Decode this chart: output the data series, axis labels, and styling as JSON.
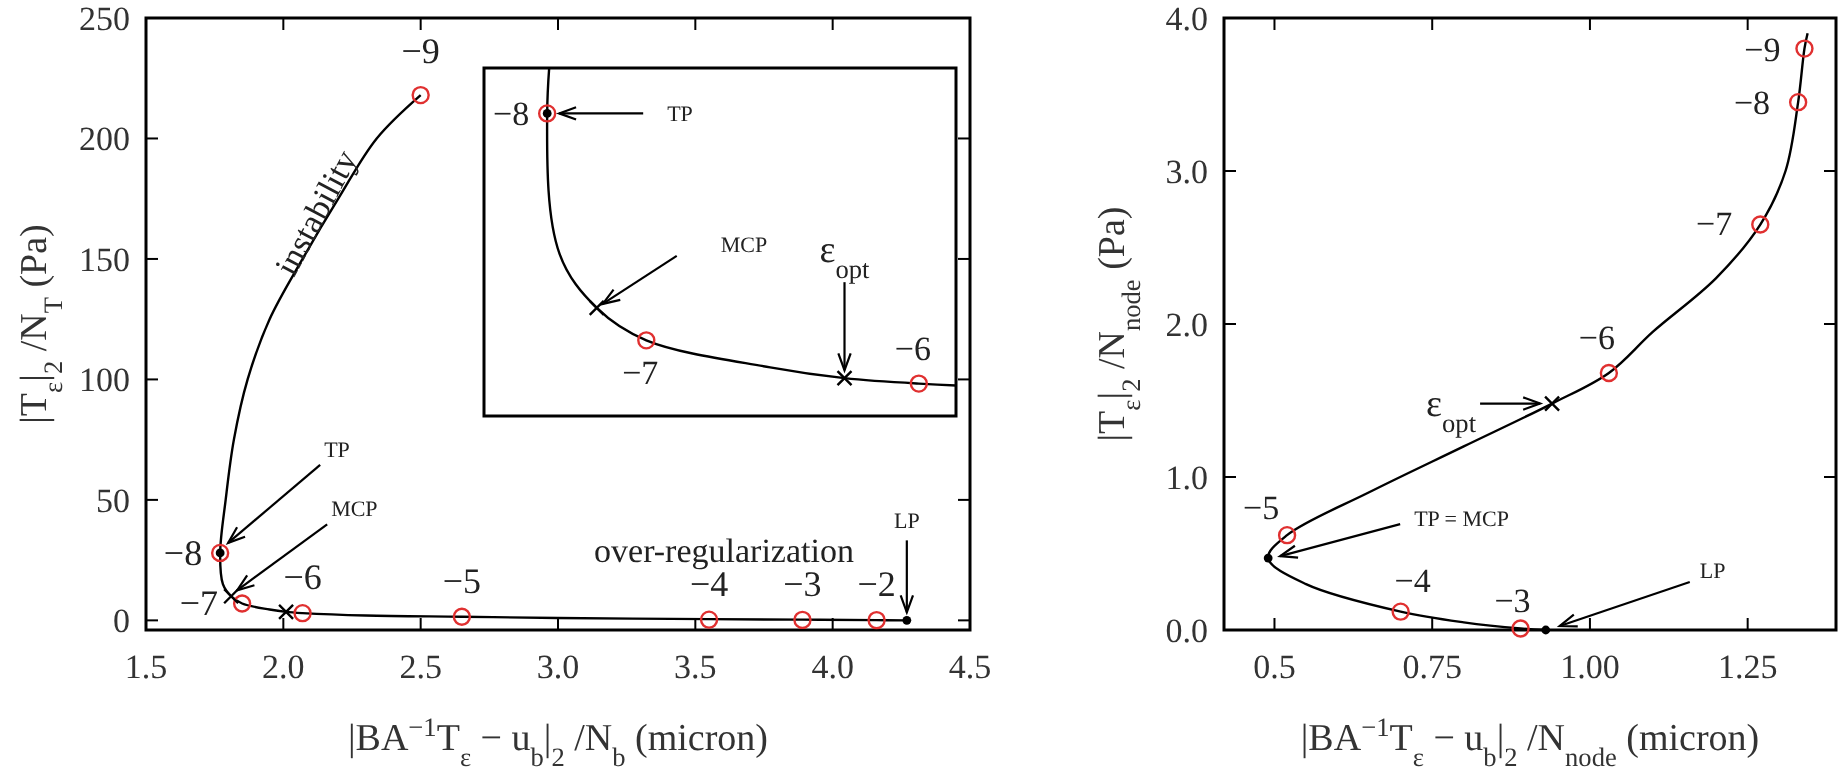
{
  "chart_data": [
    {
      "type": "line",
      "xlabel": "|BA$^{−1}$T$_{ε}$ − u$_{b}$|$_{2}$ /N$_{b}$ (micron)",
      "ylabel": "|T$_{ε}$|$_{2}$ /N$_{T}$ (Pa)",
      "xlim": [
        1.5,
        4.5
      ],
      "ylim": [
        -4,
        250
      ],
      "xticks": [
        1.5,
        {
          "value": 2,
          "label": "2.0"
        },
        2.5,
        {
          "value": 3,
          "label": "3.0"
        },
        3.5,
        {
          "value": 4,
          "label": "4.0"
        },
        4.5
      ],
      "yticks": [
        0,
        50,
        100,
        150,
        200,
        250
      ],
      "series": [
        {
          "type": "line",
          "color": "#000000",
          "marker": "none",
          "x": [
            2.5,
            2.34,
            2.2,
            2.07,
            1.95,
            1.87,
            1.82,
            1.79,
            1.77,
            1.78,
            1.81,
            1.85,
            1.95,
            2.01,
            2.07,
            2.3,
            2.65,
            3.0,
            3.55,
            3.89,
            4.16,
            4.27
          ],
          "values": [
            218,
            200,
            175,
            150,
            125,
            100,
            75,
            50,
            28,
            15,
            10,
            7,
            4.5,
            3.5,
            3,
            2,
            1.5,
            1,
            0.5,
            0.3,
            0.1,
            0
          ]
        },
        {
          "type": "scatter",
          "color": "#e03030",
          "marker": "circle",
          "x": [
            2.5,
            1.77,
            1.85,
            2.07,
            2.65,
            3.55,
            3.89,
            4.16
          ],
          "values": [
            218,
            28,
            7,
            3,
            1.5,
            0.3,
            0.2,
            0.1
          ]
        },
        {
          "type": "scatter",
          "color": "#000000",
          "marker": "circle",
          "x": [
            1.77,
            4.27
          ],
          "values": [
            28,
            0
          ]
        },
        {
          "type": "scatter",
          "color": "#000000",
          "marker": "cross",
          "x": [
            1.81,
            2.01
          ],
          "values": [
            10,
            3.5
          ]
        }
      ],
      "annotations": [
        {
          "text": "−9",
          "x": 2.5,
          "y": 218
        },
        {
          "text": "−8",
          "x": 1.77,
          "y": 28
        },
        {
          "text": "−7",
          "x": 1.85,
          "y": 7
        },
        {
          "text": "−6",
          "x": 2.07,
          "y": 3
        },
        {
          "text": "−5",
          "x": 2.65,
          "y": 1.5
        },
        {
          "text": "−4",
          "x": 3.55,
          "y": 0.3
        },
        {
          "text": "−3",
          "x": 3.89,
          "y": 0.2
        },
        {
          "text": "−2",
          "x": 4.16,
          "y": 0.1
        },
        {
          "text": "TP",
          "x": 1.77,
          "y": 28
        },
        {
          "text": "MCP",
          "x": 1.81,
          "y": 10
        },
        {
          "text": "LP",
          "x": 4.27,
          "y": 0
        },
        "instability",
        "over-regularization"
      ]
    },
    {
      "type": "other",
      "annotations": [
        "−8",
        "TP",
        "MCP",
        "−7",
        "ε$_{opt}$",
        "−6"
      ]
    },
    {
      "type": "line",
      "xlabel": "|BA$^{−1}$T$_{ε}$ − u$_{b}$|$_{2}$ /N$_{node}$ (micron)",
      "ylabel": "|T$_{ε}$|$_{2}$ /N$_{node}$ (Pa)",
      "xlim": [
        0.42,
        1.39
      ],
      "ylim": [
        0,
        4
      ],
      "xticks": [
        0.5,
        0.75,
        {
          "value": 1,
          "label": "1.00"
        },
        1.25
      ],
      "yticks": [
        {
          "value": 0,
          "label": "0.0"
        },
        {
          "value": 1,
          "label": "1.0"
        },
        {
          "value": 2,
          "label": "2.0"
        },
        {
          "value": 3,
          "label": "3.0"
        },
        {
          "value": 4,
          "label": "4.0"
        }
      ],
      "series": [
        {
          "type": "line",
          "color": "#000000",
          "marker": "none",
          "x": [
            1.345,
            1.34,
            1.33,
            1.31,
            1.27,
            1.2,
            1.1,
            1.03,
            0.94,
            0.8,
            0.65,
            0.52,
            0.49,
            0.55,
            0.7,
            0.8,
            0.89,
            0.93
          ],
          "values": [
            3.9,
            3.8,
            3.45,
            3.0,
            2.65,
            2.3,
            1.95,
            1.68,
            1.48,
            1.2,
            0.9,
            0.62,
            0.47,
            0.3,
            0.12,
            0.05,
            0.01,
            0
          ]
        },
        {
          "type": "scatter",
          "color": "#e03030",
          "marker": "circle",
          "x": [
            1.34,
            1.33,
            1.27,
            1.03,
            0.52,
            0.7,
            0.89
          ],
          "values": [
            3.8,
            3.45,
            2.65,
            1.68,
            0.62,
            0.12,
            0.01
          ]
        },
        {
          "type": "scatter",
          "color": "#000000",
          "marker": "circle",
          "x": [
            0.49,
            0.93
          ],
          "values": [
            0.47,
            0
          ]
        },
        {
          "type": "scatter",
          "color": "#000000",
          "marker": "cross",
          "x": [
            0.94
          ],
          "values": [
            1.48
          ]
        }
      ],
      "annotations": [
        {
          "text": "−9",
          "x": 1.34,
          "y": 3.8
        },
        {
          "text": "−8",
          "x": 1.33,
          "y": 3.45
        },
        {
          "text": "−7",
          "x": 1.27,
          "y": 2.65
        },
        {
          "text": "−6",
          "x": 1.03,
          "y": 1.68
        },
        {
          "text": "−5",
          "x": 0.52,
          "y": 0.62
        },
        {
          "text": "−4",
          "x": 0.7,
          "y": 0.12
        },
        {
          "text": "−3",
          "x": 0.89,
          "y": 0.01
        },
        {
          "text": "ε$_{opt}$",
          "x": 0.94,
          "y": 1.48
        },
        {
          "text": "TP = MCP",
          "x": 0.49,
          "y": 0.47
        },
        {
          "text": "LP",
          "x": 0.93,
          "y": 0
        }
      ]
    }
  ]
}
